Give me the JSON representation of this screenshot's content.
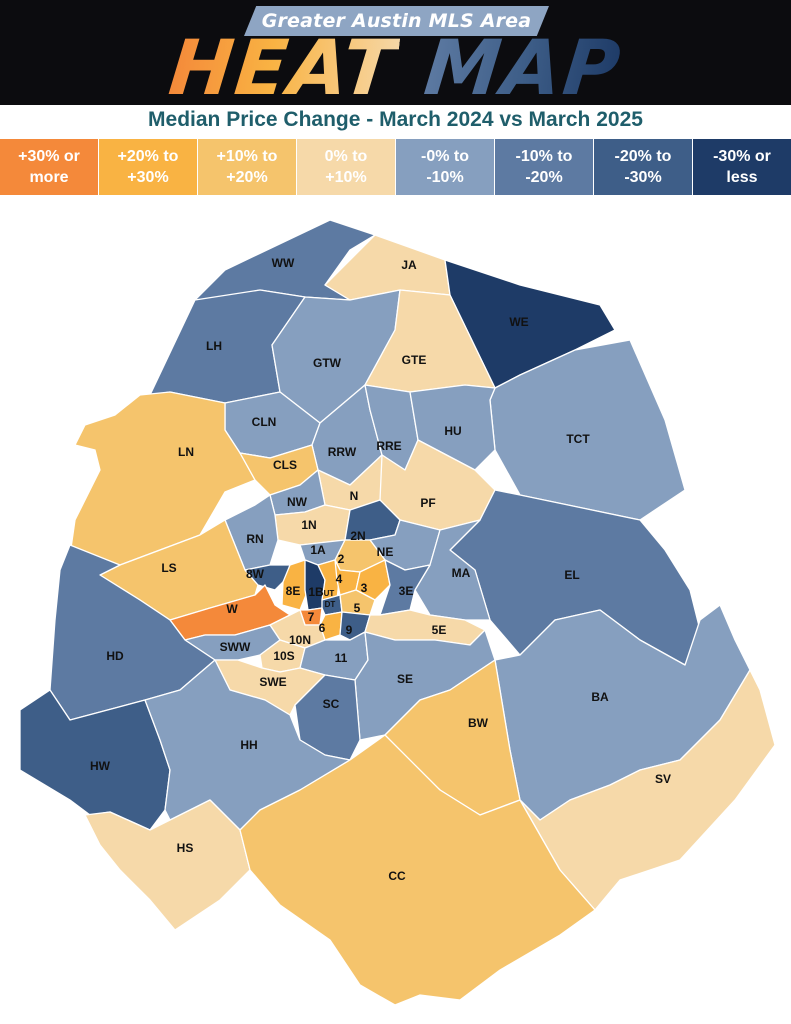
{
  "header": {
    "banner": "Greater Austin MLS Area",
    "title_word1": "HEAT",
    "title_word2": "MAP"
  },
  "subtitle": "Median Price Change - March 2024 vs March 2025",
  "legend": [
    {
      "label": "+30% or\nmore",
      "color": "#f4893a"
    },
    {
      "label": "+20% to\n+30%",
      "color": "#f9b343"
    },
    {
      "label": "+10% to\n+20%",
      "color": "#f5c46c"
    },
    {
      "label": "0% to\n+10%",
      "color": "#f6d9a9"
    },
    {
      "label": "-0% to\n-10%",
      "color": "#869fbf"
    },
    {
      "label": "-10% to\n-20%",
      "color": "#5d7aa2"
    },
    {
      "label": "-20% to\n-30%",
      "color": "#3e5e88"
    },
    {
      "label": "-30% or\nless",
      "color": "#1e3b67"
    }
  ],
  "areas": [
    {
      "name": "WW",
      "bin": 5
    },
    {
      "name": "JA",
      "bin": 3
    },
    {
      "name": "WE",
      "bin": 7
    },
    {
      "name": "LH",
      "bin": 5
    },
    {
      "name": "GTW",
      "bin": 4
    },
    {
      "name": "GTE",
      "bin": 3
    },
    {
      "name": "TCT",
      "bin": 4
    },
    {
      "name": "CLN",
      "bin": 4
    },
    {
      "name": "RRW",
      "bin": 4
    },
    {
      "name": "RRE",
      "bin": 4
    },
    {
      "name": "HU",
      "bin": 4
    },
    {
      "name": "LN",
      "bin": 2
    },
    {
      "name": "CLS",
      "bin": 2
    },
    {
      "name": "N",
      "bin": 3
    },
    {
      "name": "PF",
      "bin": 3
    },
    {
      "name": "NW",
      "bin": 4
    },
    {
      "name": "1N",
      "bin": 3
    },
    {
      "name": "2N",
      "bin": 6
    },
    {
      "name": "NE",
      "bin": 4
    },
    {
      "name": "RN",
      "bin": 4
    },
    {
      "name": "1A",
      "bin": 4
    },
    {
      "name": "2",
      "bin": 2
    },
    {
      "name": "EL",
      "bin": 5
    },
    {
      "name": "MA",
      "bin": 4
    },
    {
      "name": "LS",
      "bin": 2
    },
    {
      "name": "8W",
      "bin": 6
    },
    {
      "name": "8E",
      "bin": 1
    },
    {
      "name": "1B",
      "bin": 7
    },
    {
      "name": "UT",
      "bin": 1
    },
    {
      "name": "4",
      "bin": 1
    },
    {
      "name": "3",
      "bin": 1
    },
    {
      "name": "3E",
      "bin": 5
    },
    {
      "name": "DT",
      "bin": 6
    },
    {
      "name": "5",
      "bin": 2
    },
    {
      "name": "W",
      "bin": 0
    },
    {
      "name": "7",
      "bin": 0
    },
    {
      "name": "6",
      "bin": 1
    },
    {
      "name": "9",
      "bin": 6
    },
    {
      "name": "5E",
      "bin": 3
    },
    {
      "name": "10N",
      "bin": 3
    },
    {
      "name": "SWW",
      "bin": 4
    },
    {
      "name": "10S",
      "bin": 3
    },
    {
      "name": "11",
      "bin": 4
    },
    {
      "name": "HD",
      "bin": 5
    },
    {
      "name": "SWE",
      "bin": 3
    },
    {
      "name": "SE",
      "bin": 4
    },
    {
      "name": "SC",
      "bin": 5
    },
    {
      "name": "BA",
      "bin": 4
    },
    {
      "name": "BW",
      "bin": 2
    },
    {
      "name": "HW",
      "bin": 6
    },
    {
      "name": "HH",
      "bin": 4
    },
    {
      "name": "SV",
      "bin": 3
    },
    {
      "name": "HS",
      "bin": 3
    },
    {
      "name": "CC",
      "bin": 2
    }
  ]
}
